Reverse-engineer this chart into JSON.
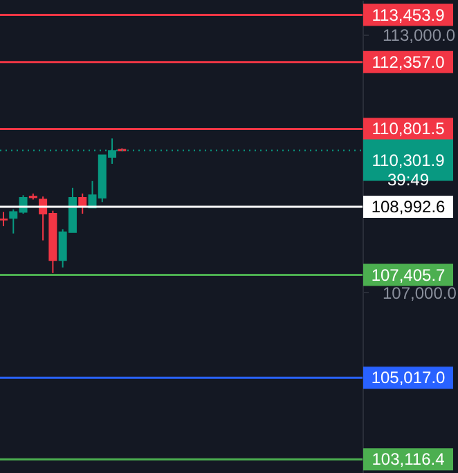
{
  "chart_data": {
    "type": "candlestick",
    "categories": [
      null,
      null,
      null,
      null,
      null,
      null,
      null,
      null,
      null,
      null,
      null,
      null,
      null,
      null,
      null,
      null,
      null,
      null,
      null,
      null,
      null,
      null,
      null,
      null,
      null,
      null,
      null,
      null,
      null,
      null,
      null,
      null,
      null,
      null,
      null,
      null,
      null
    ],
    "ohlc": [
      [
        108700,
        108870,
        108540,
        108690
      ],
      [
        108730,
        108930,
        108370,
        108870
      ],
      [
        108870,
        109260,
        108830,
        109200
      ],
      [
        109230,
        109300,
        109160,
        109210
      ],
      [
        109160,
        109230,
        108210,
        108830
      ],
      [
        108830,
        108900,
        107450,
        107750
      ],
      [
        107750,
        108470,
        107580,
        108400
      ],
      [
        108400,
        109430,
        108400,
        109200
      ],
      [
        109200,
        109300,
        108830,
        109000
      ],
      [
        108970,
        109590,
        108970,
        109260
      ],
      [
        109200,
        110190,
        109100,
        110190
      ],
      [
        110150,
        110580,
        109990,
        110290
      ],
      [
        110320,
        110350,
        110290,
        110301.9
      ],
      null,
      null,
      null,
      null,
      null,
      null,
      null,
      null,
      null,
      null,
      null,
      null,
      null,
      null,
      null,
      null,
      null,
      null,
      null,
      null,
      null,
      null,
      null,
      null
    ],
    "ylim": [
      102800,
      113800
    ],
    "yticks": [
      {
        "value": 113000,
        "label": "113,000.0"
      },
      {
        "value": 107000,
        "label": "107,000.0"
      }
    ],
    "tick_labels": "y",
    "ref_lines": [
      {
        "axis": "y",
        "value": 113453.9,
        "label": "113,453.9",
        "color": "#f23645"
      },
      {
        "axis": "y",
        "value": 112357.0,
        "label": "112,357.0",
        "color": "#f23645"
      },
      {
        "axis": "y",
        "value": 110801.5,
        "label": "110,801.5",
        "color": "#f23645"
      },
      {
        "axis": "y",
        "value": 110301.9,
        "label": "110,301.9\n39:49",
        "color": "#089981",
        "line_style": "dotted"
      },
      {
        "axis": "y",
        "value": 108992.6,
        "label": "108,992.6",
        "color": "#ffffff"
      },
      {
        "axis": "y",
        "value": 107405.7,
        "label": "107,405.7",
        "color": "#4caf50"
      },
      {
        "axis": "y",
        "value": 105017.0,
        "label": "105,017.0",
        "color": "#2962ff"
      },
      {
        "axis": "y",
        "value": 103116.4,
        "label": "103,116.4",
        "color": "#4caf50"
      }
    ]
  }
}
